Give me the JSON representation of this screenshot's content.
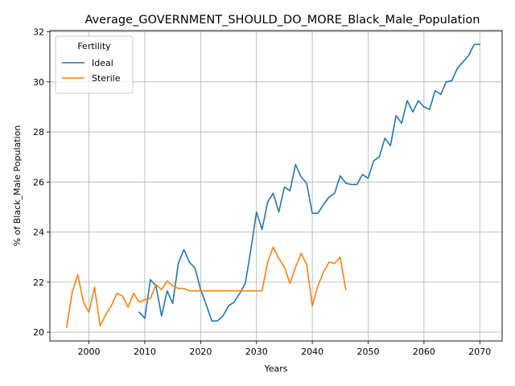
{
  "chart_data": {
    "type": "line",
    "title": "Average_GOVERNMENT_SHOULD_DO_MORE_Black_Male_Population",
    "xlabel": "Years",
    "ylabel": "% of Black_Male Population",
    "xlim": [
      1993,
      2074
    ],
    "ylim": [
      19.65,
      32.05
    ],
    "xticks": [
      2000,
      2010,
      2020,
      2030,
      2040,
      2050,
      2060,
      2070
    ],
    "yticks": [
      20,
      22,
      24,
      26,
      28,
      30,
      32
    ],
    "grid": true,
    "legend": {
      "title": "Fertility",
      "placement": "upper-left"
    },
    "series": [
      {
        "name": "Ideal",
        "color": "#1f77b4",
        "x": [
          2009,
          2010,
          2011,
          2012,
          2013,
          2014,
          2015,
          2016,
          2017,
          2018,
          2019,
          2020,
          2021,
          2022,
          2023,
          2024,
          2025,
          2026,
          2027,
          2028,
          2029,
          2030,
          2031,
          2032,
          2033,
          2034,
          2035,
          2036,
          2037,
          2038,
          2039,
          2040,
          2041,
          2042,
          2043,
          2044,
          2045,
          2046,
          2047,
          2048,
          2049,
          2050,
          2051,
          2052,
          2053,
          2054,
          2055,
          2056,
          2057,
          2058,
          2059,
          2060,
          2061,
          2062,
          2063,
          2064,
          2065,
          2066,
          2067,
          2068,
          2069,
          2070
        ],
        "values": [
          20.8,
          20.55,
          22.1,
          21.85,
          20.65,
          21.65,
          21.15,
          22.75,
          23.3,
          22.8,
          22.55,
          21.7,
          21.1,
          20.45,
          20.45,
          20.65,
          21.05,
          21.2,
          21.55,
          21.95,
          23.3,
          24.8,
          24.1,
          25.2,
          25.55,
          24.8,
          25.8,
          25.65,
          26.7,
          26.2,
          25.95,
          24.75,
          24.75,
          25.1,
          25.4,
          25.55,
          26.25,
          25.95,
          25.9,
          25.9,
          26.3,
          26.15,
          26.85,
          27.0,
          27.75,
          27.45,
          28.65,
          28.35,
          29.25,
          28.8,
          29.25,
          29.0,
          28.9,
          29.65,
          29.5,
          30.0,
          30.05,
          30.55,
          30.8,
          31.05,
          31.5,
          31.5
        ]
      },
      {
        "name": "Sterile",
        "color": "#ff7f0e",
        "x": [
          1996,
          1997,
          1998,
          1999,
          2000,
          2001,
          2002,
          2003,
          2004,
          2005,
          2006,
          2007,
          2008,
          2009,
          2010,
          2011,
          2012,
          2013,
          2014,
          2015,
          2016,
          2017,
          2018,
          2019,
          2020,
          2021,
          2022,
          2023,
          2024,
          2025,
          2026,
          2027,
          2028,
          2029,
          2030,
          2031,
          2032,
          2033,
          2034,
          2035,
          2036,
          2037,
          2038,
          2039,
          2040,
          2041,
          2042,
          2043,
          2044,
          2045,
          2046
        ],
        "values": [
          20.2,
          21.6,
          22.3,
          21.2,
          20.8,
          21.8,
          20.25,
          20.7,
          21.05,
          21.55,
          21.45,
          21.0,
          21.55,
          21.2,
          21.3,
          21.35,
          21.9,
          21.7,
          22.05,
          21.85,
          21.75,
          21.75,
          21.65,
          21.65,
          21.65,
          21.65,
          21.65,
          21.65,
          21.65,
          21.65,
          21.65,
          21.65,
          21.65,
          21.65,
          21.65,
          21.65,
          22.8,
          23.4,
          22.95,
          22.6,
          21.95,
          22.6,
          23.15,
          22.7,
          21.05,
          21.85,
          22.4,
          22.8,
          22.75,
          23.0,
          21.7
        ]
      }
    ]
  }
}
